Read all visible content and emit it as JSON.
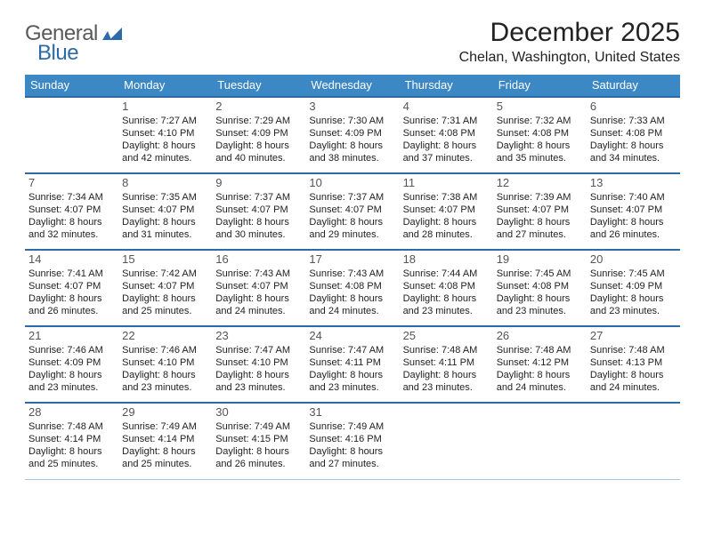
{
  "logo": {
    "word1": "General",
    "word2": "Blue",
    "word1_color": "#5a5a5a",
    "word2_color": "#2d6aa8",
    "mark_color": "#2d6aa8"
  },
  "title": "December 2025",
  "location": "Chelan, Washington, United States",
  "colors": {
    "header_bg": "#3b88c4",
    "header_text": "#ffffff",
    "row_border_top": "#2d6aa8",
    "row_border_bottom": "#aac4dd",
    "text": "#222222",
    "daynum": "#555555"
  },
  "day_headers": [
    "Sunday",
    "Monday",
    "Tuesday",
    "Wednesday",
    "Thursday",
    "Friday",
    "Saturday"
  ],
  "weeks": [
    [
      null,
      {
        "n": "1",
        "sr": "7:27 AM",
        "ss": "4:10 PM",
        "dl": "8 hours and 42 minutes."
      },
      {
        "n": "2",
        "sr": "7:29 AM",
        "ss": "4:09 PM",
        "dl": "8 hours and 40 minutes."
      },
      {
        "n": "3",
        "sr": "7:30 AM",
        "ss": "4:09 PM",
        "dl": "8 hours and 38 minutes."
      },
      {
        "n": "4",
        "sr": "7:31 AM",
        "ss": "4:08 PM",
        "dl": "8 hours and 37 minutes."
      },
      {
        "n": "5",
        "sr": "7:32 AM",
        "ss": "4:08 PM",
        "dl": "8 hours and 35 minutes."
      },
      {
        "n": "6",
        "sr": "7:33 AM",
        "ss": "4:08 PM",
        "dl": "8 hours and 34 minutes."
      }
    ],
    [
      {
        "n": "7",
        "sr": "7:34 AM",
        "ss": "4:07 PM",
        "dl": "8 hours and 32 minutes."
      },
      {
        "n": "8",
        "sr": "7:35 AM",
        "ss": "4:07 PM",
        "dl": "8 hours and 31 minutes."
      },
      {
        "n": "9",
        "sr": "7:37 AM",
        "ss": "4:07 PM",
        "dl": "8 hours and 30 minutes."
      },
      {
        "n": "10",
        "sr": "7:37 AM",
        "ss": "4:07 PM",
        "dl": "8 hours and 29 minutes."
      },
      {
        "n": "11",
        "sr": "7:38 AM",
        "ss": "4:07 PM",
        "dl": "8 hours and 28 minutes."
      },
      {
        "n": "12",
        "sr": "7:39 AM",
        "ss": "4:07 PM",
        "dl": "8 hours and 27 minutes."
      },
      {
        "n": "13",
        "sr": "7:40 AM",
        "ss": "4:07 PM",
        "dl": "8 hours and 26 minutes."
      }
    ],
    [
      {
        "n": "14",
        "sr": "7:41 AM",
        "ss": "4:07 PM",
        "dl": "8 hours and 26 minutes."
      },
      {
        "n": "15",
        "sr": "7:42 AM",
        "ss": "4:07 PM",
        "dl": "8 hours and 25 minutes."
      },
      {
        "n": "16",
        "sr": "7:43 AM",
        "ss": "4:07 PM",
        "dl": "8 hours and 24 minutes."
      },
      {
        "n": "17",
        "sr": "7:43 AM",
        "ss": "4:08 PM",
        "dl": "8 hours and 24 minutes."
      },
      {
        "n": "18",
        "sr": "7:44 AM",
        "ss": "4:08 PM",
        "dl": "8 hours and 23 minutes."
      },
      {
        "n": "19",
        "sr": "7:45 AM",
        "ss": "4:08 PM",
        "dl": "8 hours and 23 minutes."
      },
      {
        "n": "20",
        "sr": "7:45 AM",
        "ss": "4:09 PM",
        "dl": "8 hours and 23 minutes."
      }
    ],
    [
      {
        "n": "21",
        "sr": "7:46 AM",
        "ss": "4:09 PM",
        "dl": "8 hours and 23 minutes."
      },
      {
        "n": "22",
        "sr": "7:46 AM",
        "ss": "4:10 PM",
        "dl": "8 hours and 23 minutes."
      },
      {
        "n": "23",
        "sr": "7:47 AM",
        "ss": "4:10 PM",
        "dl": "8 hours and 23 minutes."
      },
      {
        "n": "24",
        "sr": "7:47 AM",
        "ss": "4:11 PM",
        "dl": "8 hours and 23 minutes."
      },
      {
        "n": "25",
        "sr": "7:48 AM",
        "ss": "4:11 PM",
        "dl": "8 hours and 23 minutes."
      },
      {
        "n": "26",
        "sr": "7:48 AM",
        "ss": "4:12 PM",
        "dl": "8 hours and 24 minutes."
      },
      {
        "n": "27",
        "sr": "7:48 AM",
        "ss": "4:13 PM",
        "dl": "8 hours and 24 minutes."
      }
    ],
    [
      {
        "n": "28",
        "sr": "7:48 AM",
        "ss": "4:14 PM",
        "dl": "8 hours and 25 minutes."
      },
      {
        "n": "29",
        "sr": "7:49 AM",
        "ss": "4:14 PM",
        "dl": "8 hours and 25 minutes."
      },
      {
        "n": "30",
        "sr": "7:49 AM",
        "ss": "4:15 PM",
        "dl": "8 hours and 26 minutes."
      },
      {
        "n": "31",
        "sr": "7:49 AM",
        "ss": "4:16 PM",
        "dl": "8 hours and 27 minutes."
      },
      null,
      null,
      null
    ]
  ],
  "labels": {
    "sunrise": "Sunrise:",
    "sunset": "Sunset:",
    "daylight": "Daylight:"
  }
}
